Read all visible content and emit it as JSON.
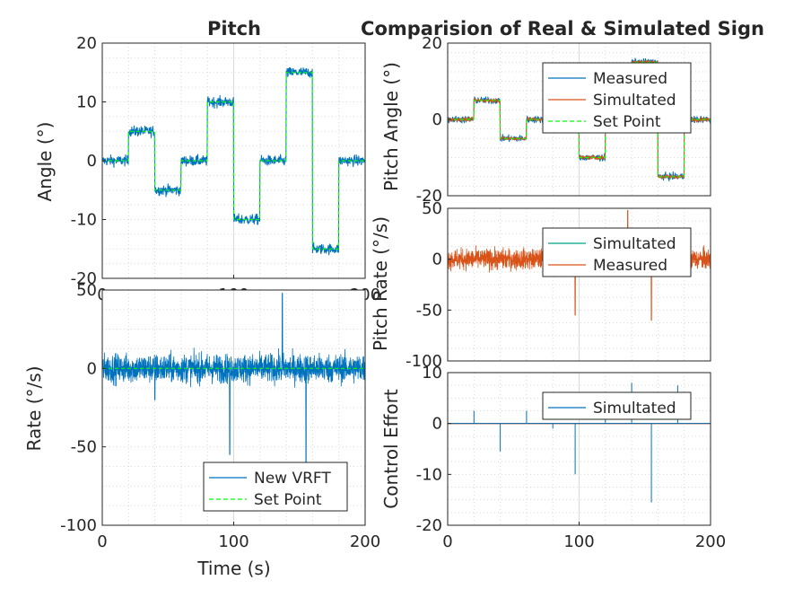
{
  "figure": {
    "left_title": "Pitch",
    "right_title": "Comparision of Real & Simulated Sign"
  },
  "colors": {
    "blue": "#0072BD",
    "orange": "#D95319",
    "green": "#00FF00",
    "teal": "#00A087",
    "grid": "#d9d9d9",
    "axis": "#262626"
  },
  "chart_data": [
    {
      "id": "pitch-angle",
      "type": "line",
      "title": "Pitch",
      "ylabel": "Angle (°)",
      "xlabel": "",
      "xlim": [
        0,
        200
      ],
      "ylim": [
        -20,
        20
      ],
      "xticks": [
        "0",
        "100",
        "200"
      ],
      "yticks": [
        "20",
        "10",
        "0",
        "-10",
        "-20"
      ],
      "grid": "on",
      "series": [
        {
          "name": "",
          "style": "measured",
          "color": "blue",
          "noise": 1.0,
          "values_description_free": true,
          "segments": [
            [
              0,
              0
            ],
            [
              20,
              0
            ],
            [
              20,
              5
            ],
            [
              40,
              5
            ],
            [
              40,
              -5
            ],
            [
              60,
              -5
            ],
            [
              60,
              0
            ],
            [
              80,
              0
            ],
            [
              80,
              10
            ],
            [
              100,
              10
            ],
            [
              100,
              -10
            ],
            [
              120,
              -10
            ],
            [
              120,
              0
            ],
            [
              140,
              0
            ],
            [
              140,
              15
            ],
            [
              160,
              15
            ],
            [
              160,
              -15
            ],
            [
              180,
              -15
            ],
            [
              180,
              0
            ],
            [
              200,
              0
            ]
          ]
        },
        {
          "name": "",
          "style": "setpoint",
          "color": "green",
          "segments": [
            [
              0,
              0
            ],
            [
              20,
              0
            ],
            [
              20,
              5
            ],
            [
              40,
              5
            ],
            [
              40,
              -5
            ],
            [
              60,
              -5
            ],
            [
              60,
              0
            ],
            [
              80,
              0
            ],
            [
              80,
              10
            ],
            [
              100,
              10
            ],
            [
              100,
              -10
            ],
            [
              120,
              -10
            ],
            [
              120,
              0
            ],
            [
              140,
              0
            ],
            [
              140,
              15
            ],
            [
              160,
              15
            ],
            [
              160,
              -15
            ],
            [
              180,
              -15
            ],
            [
              180,
              0
            ],
            [
              200,
              0
            ]
          ]
        }
      ]
    },
    {
      "id": "pitch-rate",
      "type": "line",
      "ylabel": "Rate (°/s)",
      "xlabel": "Time (s)",
      "xlim": [
        0,
        200
      ],
      "ylim": [
        -100,
        50
      ],
      "xticks": [
        "0",
        "100",
        "200"
      ],
      "yticks": [
        "50",
        "0",
        "-50",
        "-100"
      ],
      "grid": "on",
      "legend": {
        "placement": "bottom-right",
        "entries": [
          "New VRFT",
          "Set Point"
        ]
      },
      "series": [
        {
          "name": "New VRFT",
          "color": "blue",
          "noise": 9,
          "spikes": [
            [
              97,
              -55
            ],
            [
              155,
              -60
            ],
            [
              137,
              48
            ],
            [
              40,
              -20
            ]
          ]
        },
        {
          "name": "Set Point",
          "color": "green",
          "style": "dashed"
        }
      ]
    },
    {
      "id": "cmp-angle",
      "type": "line",
      "title": "Comparision of Real & Simulated Sign",
      "ylabel": "Pitch Angle (°)",
      "xlim": [
        0,
        200
      ],
      "ylim": [
        -20,
        20
      ],
      "yticks": [
        "20",
        "0",
        "-20"
      ],
      "grid": "on",
      "legend": {
        "placement": "top-right",
        "entries": [
          "Measured",
          "Simultated",
          "Set Point"
        ]
      },
      "series": [
        {
          "name": "Measured",
          "color": "blue"
        },
        {
          "name": "Simultated",
          "color": "orange"
        },
        {
          "name": "Set Point",
          "color": "green",
          "style": "dashed"
        }
      ]
    },
    {
      "id": "cmp-rate",
      "type": "line",
      "ylabel": "Pitch Rate (°/s)",
      "xlim": [
        0,
        200
      ],
      "ylim": [
        -100,
        50
      ],
      "yticks": [
        "50",
        "0",
        "-50",
        "-100"
      ],
      "grid": "on",
      "legend": {
        "placement": "top-right",
        "entries": [
          "Simultated",
          "Measured"
        ]
      },
      "series": [
        {
          "name": "Simultated",
          "color": "teal"
        },
        {
          "name": "Measured",
          "color": "orange",
          "noise": 10,
          "spikes": [
            [
              97,
              -55
            ],
            [
              155,
              -60
            ],
            [
              137,
              48
            ]
          ]
        }
      ]
    },
    {
      "id": "cmp-effort",
      "type": "line",
      "ylabel": "Control Effort",
      "xlim": [
        0,
        200
      ],
      "ylim": [
        -20,
        10
      ],
      "xticks": [
        "0",
        "100",
        "200"
      ],
      "yticks": [
        "10",
        "0",
        "-10",
        "-20"
      ],
      "grid": "on",
      "legend": {
        "placement": "top-right",
        "entries": [
          "Simultated"
        ]
      },
      "series": [
        {
          "name": "Simultated",
          "color": "blue",
          "spikes": [
            [
              20,
              2.5
            ],
            [
              40,
              -5.5
            ],
            [
              60,
              2.5
            ],
            [
              80,
              -1
            ],
            [
              97,
              -10
            ],
            [
              120,
              2.5
            ],
            [
              140,
              8
            ],
            [
              155,
              -15.5
            ],
            [
              175,
              7.5
            ]
          ]
        },
        {
          "name": "",
          "color": "orange"
        }
      ]
    }
  ]
}
